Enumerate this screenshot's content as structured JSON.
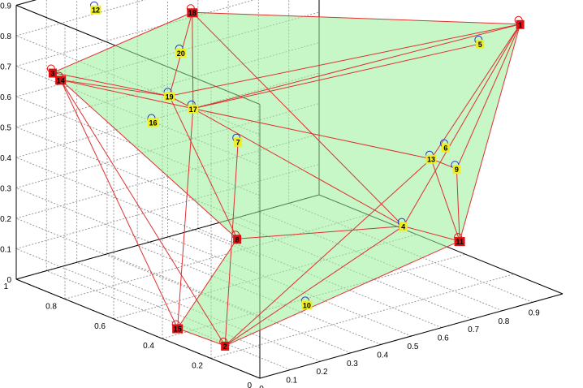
{
  "chart_data": {
    "type": "scatter3d",
    "title": "",
    "xlabel": "",
    "ylabel": "",
    "zlabel": "",
    "xlim": [
      0,
      1
    ],
    "ylim": [
      0,
      1
    ],
    "zlim": [
      0,
      0.9
    ],
    "grid": true,
    "x_ticks": [
      "0",
      "0.1",
      "0.2",
      "0.3",
      "0.4",
      "0.5",
      "0.6",
      "0.7",
      "0.8",
      "0.9"
    ],
    "y_ticks": [
      "0",
      "0.2",
      "0.4",
      "0.6",
      "0.8",
      "1"
    ],
    "z_ticks": [
      "0",
      "0.1",
      "0.2",
      "0.3",
      "0.4",
      "0.5",
      "0.6",
      "0.7",
      "0.8",
      "0.9"
    ],
    "colors": {
      "hull_node": "#dd1111",
      "interior_node": "#eeee22",
      "edge": "#e03030",
      "hull_fill": "#99ee99",
      "marker_ring": "#2233cc",
      "grid": "#999999",
      "axis": "#000000"
    },
    "points": [
      {
        "id": "1",
        "x": 0.94,
        "y": 0.1,
        "z": 0.87,
        "hull": true
      },
      {
        "id": "2",
        "x": 0.03,
        "y": 0.18,
        "z": 0.04,
        "hull": true
      },
      {
        "id": "3",
        "x": 0.04,
        "y": 0.9,
        "z": 0.7,
        "hull": true
      },
      {
        "id": "4",
        "x": 0.53,
        "y": 0.07,
        "z": 0.33,
        "hull": false
      },
      {
        "id": "5",
        "x": 0.84,
        "y": 0.14,
        "z": 0.82,
        "hull": false
      },
      {
        "id": "6",
        "x": 0.67,
        "y": 0.07,
        "z": 0.55,
        "hull": false
      },
      {
        "id": "7",
        "x": 0.29,
        "y": 0.45,
        "z": 0.55,
        "hull": false
      },
      {
        "id": "8",
        "x": 0.07,
        "y": 0.18,
        "z": 0.38,
        "hull": true
      },
      {
        "id": "9",
        "x": 0.69,
        "y": 0.05,
        "z": 0.48,
        "hull": false
      },
      {
        "id": "10",
        "x": 0.3,
        "y": 0.18,
        "z": 0.1,
        "hull": false
      },
      {
        "id": "11",
        "x": 0.7,
        "y": 0.05,
        "z": 0.24,
        "hull": true
      },
      {
        "id": "12",
        "x": 0.15,
        "y": 0.86,
        "z": 0.89,
        "hull": false
      },
      {
        "id": "13",
        "x": 0.63,
        "y": 0.08,
        "z": 0.52,
        "hull": false
      },
      {
        "id": "14",
        "x": 0.05,
        "y": 0.88,
        "z": 0.68,
        "hull": true
      },
      {
        "id": "15",
        "x": 0.05,
        "y": 0.4,
        "z": 0.02,
        "hull": true
      },
      {
        "id": "16",
        "x": 0.13,
        "y": 0.6,
        "z": 0.61,
        "hull": false
      },
      {
        "id": "17",
        "x": 0.23,
        "y": 0.56,
        "z": 0.64,
        "hull": false
      },
      {
        "id": "18",
        "x": 0.34,
        "y": 0.7,
        "z": 0.88,
        "hull": true
      },
      {
        "id": "19",
        "x": 0.2,
        "y": 0.62,
        "z": 0.67,
        "hull": false
      },
      {
        "id": "20",
        "x": 0.27,
        "y": 0.66,
        "z": 0.78,
        "hull": false
      }
    ],
    "edges": [
      [
        "3",
        "18"
      ],
      [
        "18",
        "1"
      ],
      [
        "1",
        "11"
      ],
      [
        "11",
        "2"
      ],
      [
        "2",
        "15"
      ],
      [
        "15",
        "8"
      ],
      [
        "8",
        "3"
      ],
      [
        "3",
        "14"
      ],
      [
        "14",
        "19"
      ],
      [
        "19",
        "18"
      ],
      [
        "18",
        "17"
      ],
      [
        "17",
        "19"
      ],
      [
        "14",
        "17"
      ],
      [
        "3",
        "19"
      ],
      [
        "19",
        "1"
      ],
      [
        "17",
        "1"
      ],
      [
        "17",
        "5"
      ],
      [
        "14",
        "15"
      ],
      [
        "17",
        "15"
      ],
      [
        "17",
        "13"
      ],
      [
        "13",
        "9"
      ],
      [
        "9",
        "11"
      ],
      [
        "13",
        "11"
      ],
      [
        "13",
        "1"
      ],
      [
        "9",
        "1"
      ],
      [
        "4",
        "1"
      ],
      [
        "4",
        "11"
      ],
      [
        "4",
        "8"
      ],
      [
        "17",
        "4"
      ],
      [
        "14",
        "2"
      ],
      [
        "7",
        "2"
      ],
      [
        "13",
        "2"
      ],
      [
        "4",
        "2"
      ],
      [
        "19",
        "8"
      ],
      [
        "18",
        "4"
      ]
    ],
    "hull_faces": [
      [
        "3",
        "18",
        "1",
        "11",
        "2",
        "15",
        "8"
      ]
    ]
  }
}
